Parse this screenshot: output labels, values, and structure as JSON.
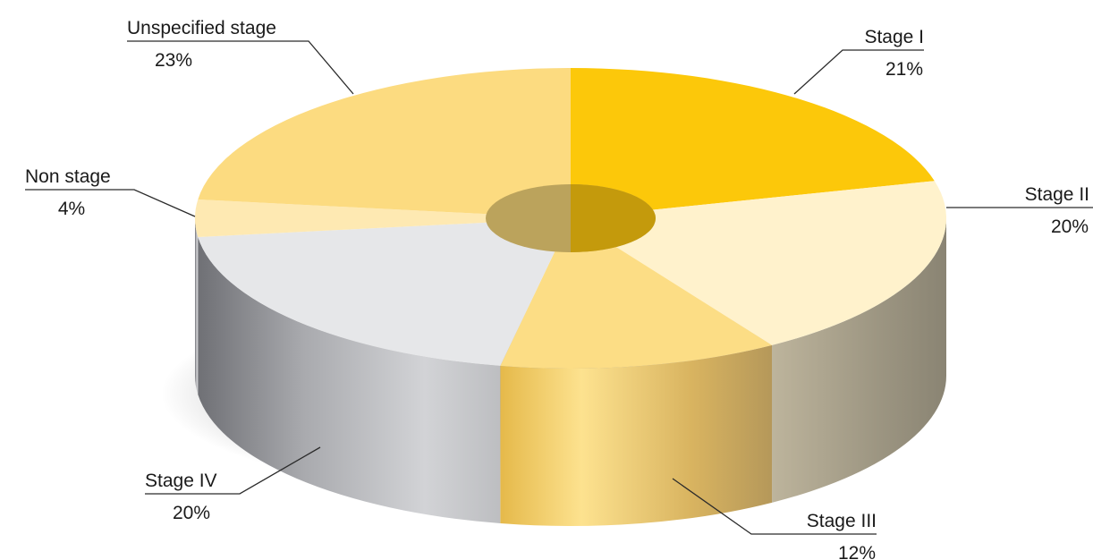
{
  "chart_data": {
    "type": "pie",
    "title": "",
    "categories": [
      "Stage I",
      "Stage II",
      "Stage III",
      "Stage IV",
      "Non stage",
      "Unspecified stage"
    ],
    "values": [
      21,
      20,
      12,
      20,
      4,
      23
    ],
    "value_labels": [
      "21%",
      "20%",
      "12%",
      "20%",
      "4%",
      "23%"
    ],
    "colors": [
      "#fcc80a",
      "#fff2cc",
      "#fcdd85",
      "#e6e7e9",
      "#fee9b2",
      "#fcdb80"
    ],
    "side_colors": [
      "#a8a08a",
      "#a8a08a",
      "#e8c35e",
      "#a3a4a8",
      "#a3a4a8",
      "#a3a4a8"
    ],
    "legend": "none",
    "style": "3d-donut"
  }
}
